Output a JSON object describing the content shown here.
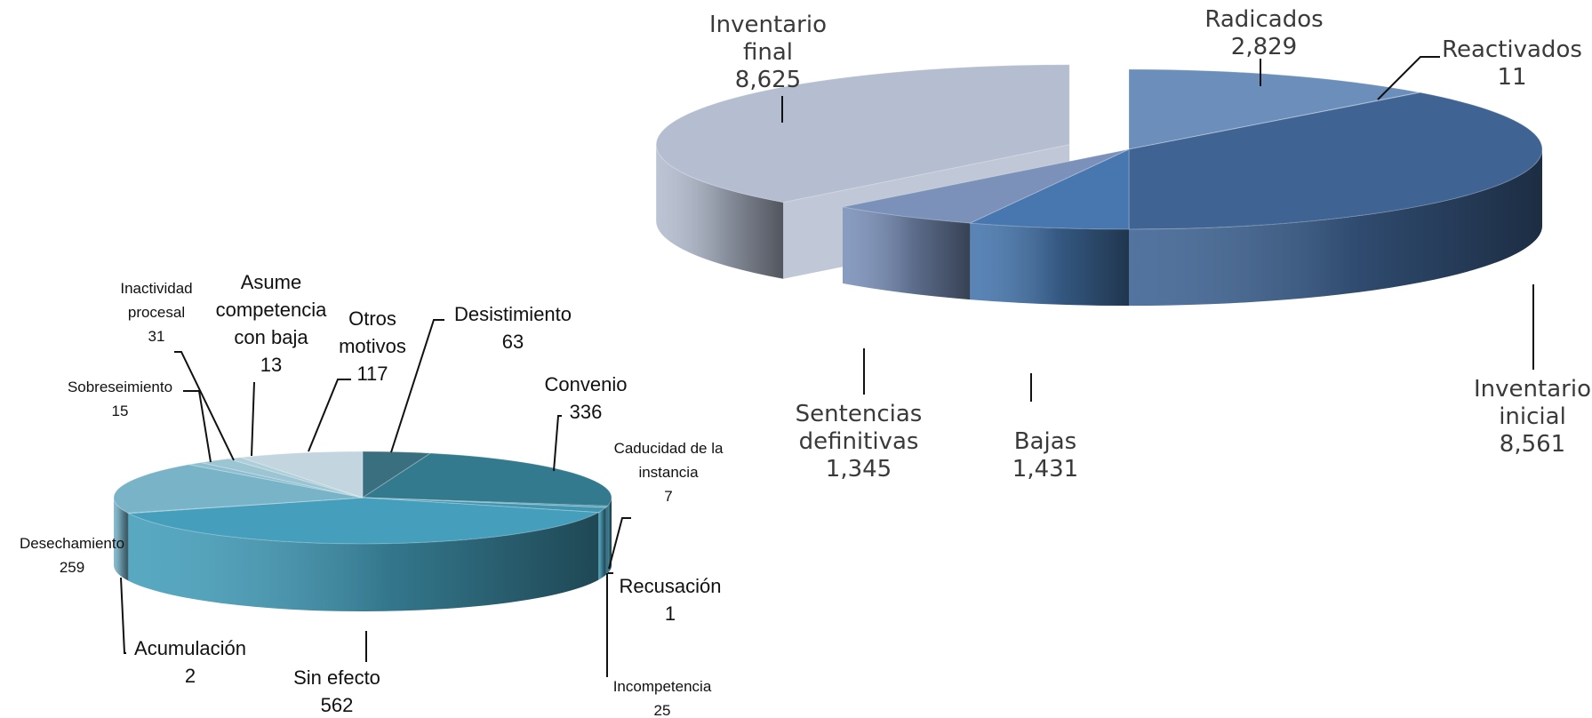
{
  "chart_data": [
    {
      "type": "pie",
      "style": "3d-exploded",
      "slices": [
        {
          "label": [
            "Radicados"
          ],
          "value": 2829,
          "value_text": "2,829",
          "color": "#6B8EBA"
        },
        {
          "label": [
            "Reactivados"
          ],
          "value": 11,
          "value_text": "11",
          "color": "#5A7EAE"
        },
        {
          "label": [
            "Inventario",
            "inicial"
          ],
          "value": 8561,
          "value_text": "8,561",
          "color": "#3F6494"
        },
        {
          "label": [
            "Bajas"
          ],
          "value": 1431,
          "value_text": "1,431",
          "color": "#4777AE"
        },
        {
          "label": [
            "Sentencias",
            "definitivas"
          ],
          "value": 1345,
          "value_text": "1,345",
          "color": "#7B91BA"
        },
        {
          "label": [
            "Inventario",
            "final"
          ],
          "value": 8625,
          "value_text": "8,625",
          "color": "#B5BED0"
        }
      ]
    },
    {
      "type": "pie",
      "style": "3d",
      "slices": [
        {
          "label": [
            "Desistimiento"
          ],
          "value": 63,
          "value_text": "63",
          "color": "#3A6F80"
        },
        {
          "label": [
            "Convenio"
          ],
          "value": 336,
          "value_text": "336",
          "color": "#347A8E"
        },
        {
          "label": [
            "Caducidad de la",
            "instancia"
          ],
          "value": 7,
          "value_text": "7",
          "color": "#3B8BA4"
        },
        {
          "label": [
            "Recusación"
          ],
          "value": 1,
          "value_text": "1",
          "color": "#3E91AB"
        },
        {
          "label": [
            "Incompetencia"
          ],
          "value": 25,
          "value_text": "25",
          "color": "#4195AF"
        },
        {
          "label": [
            "Sin efecto"
          ],
          "value": 562,
          "value_text": "562",
          "color": "#459FBC"
        },
        {
          "label": [
            "Acumulación"
          ],
          "value": 2,
          "value_text": "2",
          "color": "#4AA2BD"
        },
        {
          "label": [
            "Desechamiento"
          ],
          "value": 259,
          "value_text": "259",
          "color": "#79B3C8"
        },
        {
          "label": [
            "Sobreseimiento"
          ],
          "value": 15,
          "value_text": "15",
          "color": "#8DBFD0"
        },
        {
          "label": [
            "Inactividad",
            "procesal"
          ],
          "value": 31,
          "value_text": "31",
          "color": "#9CC5D3"
        },
        {
          "label": [
            "Asume",
            "competencia",
            "con baja"
          ],
          "value": 13,
          "value_text": "13",
          "color": "#AECFDA"
        },
        {
          "label": [
            "Otros",
            "motivos"
          ],
          "value": 117,
          "value_text": "117",
          "color": "#C3D6DF"
        }
      ]
    }
  ]
}
